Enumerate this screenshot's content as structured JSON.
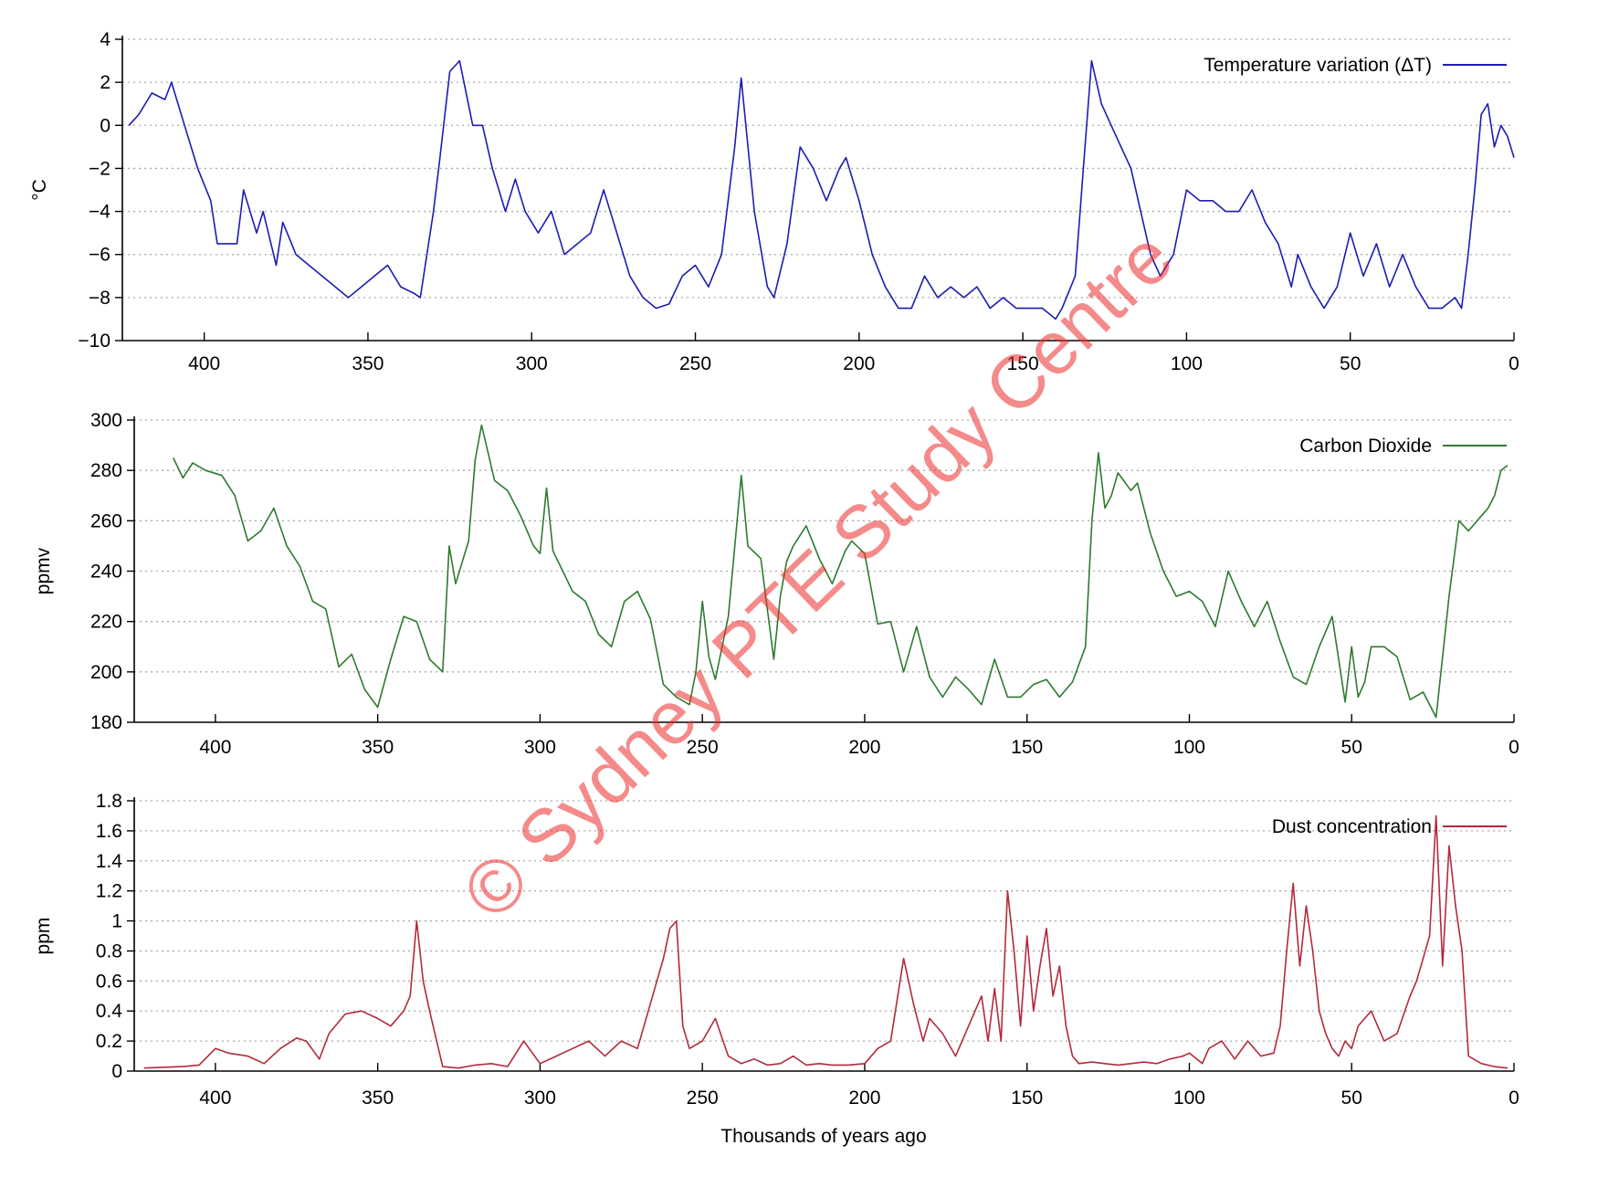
{
  "chart_data": [
    {
      "type": "line",
      "ylabel": "°C",
      "xlim": [
        425,
        0
      ],
      "ylim": [
        -10,
        4
      ],
      "grid": true,
      "legend_position": "top-right",
      "y_ticks": [
        "4",
        "2",
        "0",
        "−2",
        "−4",
        "−6",
        "−8",
        "−10"
      ],
      "x_ticks": [
        "400",
        "350",
        "300",
        "250",
        "200",
        "150",
        "100",
        "50",
        "0"
      ],
      "series": [
        {
          "name": "Temperature variation (ΔT)",
          "color": "#1c1cb4",
          "x": [
            423,
            420,
            416,
            412,
            410,
            406,
            402,
            398,
            396,
            394,
            390,
            388,
            384,
            382,
            378,
            376,
            372,
            368,
            364,
            360,
            356,
            352,
            348,
            344,
            340,
            336,
            334,
            330,
            328,
            325,
            322,
            318,
            315,
            312,
            308,
            305,
            302,
            298,
            294,
            290,
            286,
            282,
            278,
            274,
            270,
            266,
            262,
            258,
            254,
            250,
            246,
            242,
            238,
            236,
            232,
            228,
            226,
            222,
            218,
            214,
            210,
            206,
            204,
            200,
            196,
            192,
            188,
            184,
            180,
            176,
            172,
            168,
            164,
            160,
            156,
            152,
            148,
            144,
            140,
            138,
            134,
            131,
            129,
            126,
            123,
            120,
            117,
            114,
            111,
            108,
            104,
            100,
            96,
            92,
            88,
            84,
            80,
            76,
            72,
            68,
            66,
            62,
            58,
            54,
            50,
            46,
            42,
            38,
            34,
            30,
            26,
            22,
            18,
            16,
            14,
            12,
            10,
            8,
            6,
            4,
            2,
            0
          ],
          "y": [
            0,
            0.5,
            1.5,
            1.2,
            2,
            0,
            -2,
            -3.5,
            -5.5,
            -5.5,
            -5.5,
            -3,
            -5,
            -4,
            -6.5,
            -4.5,
            -6,
            -6.5,
            -7,
            -7.5,
            -8,
            -7.5,
            -7,
            -6.5,
            -7.5,
            -7.8,
            -8,
            -4,
            -1.5,
            2.5,
            3,
            0,
            0,
            -2,
            -4,
            -2.5,
            -4,
            -5,
            -4,
            -6,
            -5.5,
            -5,
            -3,
            -5,
            -7,
            -8,
            -8.5,
            -8.3,
            -7,
            -6.5,
            -7.5,
            -6,
            -1,
            2.2,
            -4,
            -7.5,
            -8,
            -5.5,
            -1,
            -2,
            -3.5,
            -2,
            -1.5,
            -3.5,
            -6,
            -7.5,
            -8.5,
            -8.5,
            -7,
            -8,
            -7.5,
            -8,
            -7.5,
            -8.5,
            -8,
            -8.5,
            -8.5,
            -8.5,
            -9,
            -8.5,
            -7,
            -1,
            3,
            1,
            0,
            -1,
            -2,
            -4,
            -6,
            -7,
            -6,
            -3,
            -3.5,
            -3.5,
            -4,
            -4,
            -3,
            -4.5,
            -5.5,
            -7.5,
            -6,
            -7.5,
            -8.5,
            -7.5,
            -5,
            -7,
            -5.5,
            -7.5,
            -6,
            -7.5,
            -8.5,
            -8.5,
            -8,
            -8.5,
            -6,
            -3,
            0.5,
            1,
            -1,
            0,
            -0.5,
            -1.5
          ]
        }
      ]
    },
    {
      "type": "line",
      "ylabel": "ppmv",
      "xlim": [
        425,
        0
      ],
      "ylim": [
        180,
        300
      ],
      "grid": true,
      "legend_position": "top-right",
      "y_ticks": [
        "300",
        "280",
        "260",
        "240",
        "220",
        "200",
        "180"
      ],
      "x_ticks": [
        "400",
        "350",
        "300",
        "250",
        "200",
        "150",
        "100",
        "50",
        "0"
      ],
      "series": [
        {
          "name": "Carbon Dioxide",
          "color": "#2e7a2e",
          "x": [
            413,
            410,
            407,
            403,
            398,
            394,
            390,
            386,
            382,
            378,
            374,
            370,
            366,
            362,
            358,
            354,
            350,
            346,
            342,
            338,
            334,
            330,
            328,
            326,
            322,
            320,
            318,
            314,
            310,
            306,
            302,
            300,
            298,
            296,
            290,
            286,
            282,
            278,
            274,
            270,
            266,
            262,
            258,
            254,
            252,
            250,
            248,
            246,
            242,
            238,
            236,
            232,
            228,
            226,
            224,
            222,
            218,
            214,
            210,
            206,
            204,
            200,
            196,
            192,
            188,
            184,
            180,
            176,
            172,
            168,
            164,
            160,
            156,
            152,
            148,
            144,
            140,
            136,
            132,
            130,
            128,
            126,
            124,
            122,
            118,
            116,
            112,
            108,
            104,
            100,
            96,
            92,
            88,
            84,
            80,
            76,
            72,
            68,
            64,
            60,
            56,
            52,
            50,
            48,
            46,
            44,
            40,
            36,
            32,
            28,
            24,
            20,
            17,
            14,
            10,
            8,
            6,
            4,
            2
          ],
          "y": [
            285,
            277,
            283,
            280,
            278,
            270,
            252,
            256,
            265,
            250,
            242,
            228,
            225,
            202,
            207,
            193,
            186,
            205,
            222,
            220,
            205,
            200,
            250,
            235,
            252,
            284,
            298,
            276,
            272,
            262,
            250,
            247,
            273,
            248,
            232,
            228,
            215,
            210,
            228,
            232,
            221,
            195,
            190,
            187,
            200,
            228,
            206,
            197,
            222,
            278,
            250,
            245,
            205,
            230,
            244,
            250,
            258,
            245,
            235,
            248,
            252,
            247,
            219,
            220,
            200,
            218,
            198,
            190,
            198,
            193,
            187,
            205,
            190,
            190,
            195,
            197,
            190,
            196,
            210,
            260,
            287,
            265,
            270,
            279,
            272,
            275,
            255,
            240,
            230,
            232,
            228,
            218,
            240,
            228,
            218,
            228,
            212,
            198,
            195,
            210,
            222,
            188,
            210,
            190,
            196,
            210,
            210,
            206,
            189,
            192,
            182,
            230,
            260,
            256,
            262,
            265,
            270,
            280,
            282
          ]
        }
      ]
    },
    {
      "type": "line",
      "ylabel": "ppm",
      "xlabel": "Thousands of years ago",
      "xlim": [
        425,
        0
      ],
      "ylim": [
        0,
        1.8
      ],
      "grid": true,
      "legend_position": "top-right",
      "y_ticks": [
        "1.8",
        "1.6",
        "1.4",
        "1.2",
        "1",
        "0.8",
        "0.6",
        "0.4",
        "0.2",
        "0"
      ],
      "x_ticks": [
        "400",
        "350",
        "300",
        "250",
        "200",
        "150",
        "100",
        "50",
        "0"
      ],
      "series": [
        {
          "name": "Dust concentration",
          "color": "#b22a3a",
          "x": [
            422,
            410,
            405,
            400,
            396,
            390,
            385,
            380,
            375,
            372,
            368,
            365,
            360,
            355,
            350,
            346,
            342,
            340,
            338,
            336,
            334,
            330,
            325,
            320,
            315,
            310,
            305,
            300,
            295,
            290,
            285,
            280,
            275,
            270,
            268,
            264,
            262,
            260,
            258,
            256,
            254,
            250,
            246,
            242,
            238,
            234,
            230,
            226,
            222,
            218,
            214,
            210,
            205,
            200,
            196,
            192,
            188,
            185,
            182,
            180,
            176,
            172,
            168,
            164,
            162,
            160,
            158,
            156,
            154,
            152,
            150,
            148,
            146,
            144,
            142,
            140,
            138,
            136,
            134,
            130,
            126,
            122,
            118,
            114,
            110,
            106,
            102,
            100,
            96,
            94,
            90,
            86,
            82,
            78,
            74,
            72,
            70,
            68,
            66,
            64,
            62,
            60,
            58,
            56,
            54,
            52,
            50,
            48,
            46,
            44,
            40,
            36,
            32,
            30,
            28,
            26,
            24,
            22,
            20,
            18,
            16,
            14,
            10,
            6,
            2
          ],
          "y": [
            0.02,
            0.03,
            0.04,
            0.15,
            0.12,
            0.1,
            0.05,
            0.15,
            0.22,
            0.2,
            0.08,
            0.25,
            0.38,
            0.4,
            0.35,
            0.3,
            0.4,
            0.5,
            1.0,
            0.6,
            0.4,
            0.03,
            0.02,
            0.04,
            0.05,
            0.03,
            0.2,
            0.05,
            0.1,
            0.15,
            0.2,
            0.1,
            0.2,
            0.15,
            0.3,
            0.6,
            0.75,
            0.95,
            1.0,
            0.3,
            0.15,
            0.2,
            0.35,
            0.1,
            0.05,
            0.08,
            0.04,
            0.05,
            0.1,
            0.04,
            0.05,
            0.04,
            0.04,
            0.05,
            0.15,
            0.2,
            0.75,
            0.45,
            0.2,
            0.35,
            0.25,
            0.1,
            0.3,
            0.5,
            0.2,
            0.55,
            0.2,
            1.2,
            0.8,
            0.3,
            0.9,
            0.4,
            0.7,
            0.95,
            0.5,
            0.7,
            0.3,
            0.1,
            0.05,
            0.06,
            0.05,
            0.04,
            0.05,
            0.06,
            0.05,
            0.08,
            0.1,
            0.12,
            0.05,
            0.15,
            0.2,
            0.08,
            0.2,
            0.1,
            0.12,
            0.3,
            0.8,
            1.25,
            0.7,
            1.1,
            0.8,
            0.4,
            0.25,
            0.15,
            0.1,
            0.2,
            0.15,
            0.3,
            0.35,
            0.4,
            0.2,
            0.25,
            0.5,
            0.6,
            0.75,
            0.9,
            1.7,
            0.7,
            1.5,
            1.1,
            0.8,
            0.1,
            0.05,
            0.03,
            0.02
          ]
        }
      ]
    }
  ],
  "watermark": "© Sydney PTE Study Centre"
}
